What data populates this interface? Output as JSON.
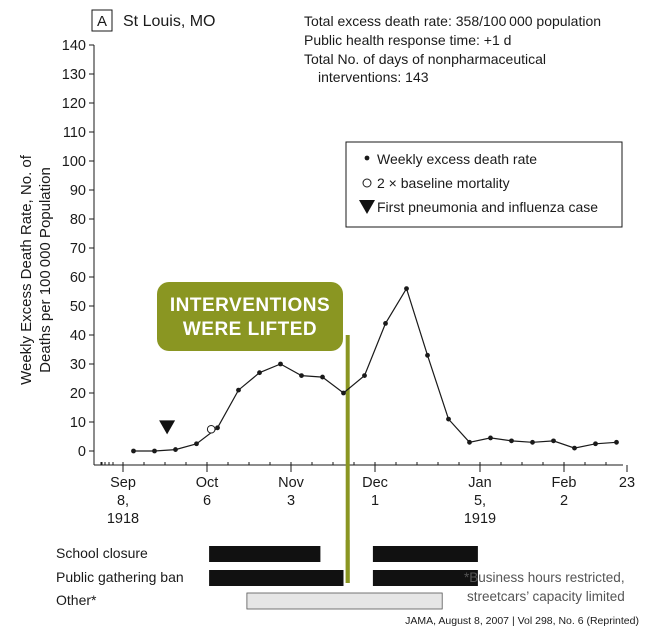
{
  "panel": {
    "label": "A",
    "city": "St Louis, MO"
  },
  "stats": [
    "Total excess death rate: 358/100 000 population",
    "Public health response time: +1 d",
    "Total No. of days of nonpharmaceutical",
    "interventions: 143"
  ],
  "legend": {
    "dot_label": "Weekly excess death rate",
    "open_label": "2 × baseline mortality",
    "triangle_label": "First pneumonia and influenza case"
  },
  "callout": {
    "line1": "INTERVENTIONS",
    "line2": "WERE LIFTED",
    "color": "#8a9622",
    "week": 10.7
  },
  "chart_data": {
    "type": "line",
    "ylabel_lines": [
      "Weekly Excess Death Rate, No. of",
      "Deaths per 100 000 Population"
    ],
    "ylim": [
      0,
      140
    ],
    "yticks": [
      0,
      10,
      20,
      30,
      40,
      50,
      60,
      70,
      80,
      90,
      100,
      110,
      120,
      130,
      140
    ],
    "xlim": [
      -0.55,
      23.8
    ],
    "xticks": [
      {
        "week": 0,
        "lines": [
          "Sep",
          "8,",
          "1918"
        ]
      },
      {
        "week": 4,
        "lines": [
          "Oct",
          "6"
        ]
      },
      {
        "week": 8,
        "lines": [
          "Nov",
          "3"
        ]
      },
      {
        "week": 12,
        "lines": [
          "Dec",
          "1"
        ]
      },
      {
        "week": 17,
        "lines": [
          "Jan",
          "5,",
          "1919"
        ]
      },
      {
        "week": 21,
        "lines": [
          "Feb",
          "2"
        ]
      },
      {
        "week": 24,
        "lines": [
          "23"
        ]
      }
    ],
    "series": [
      {
        "name": "Weekly excess death rate",
        "points": [
          {
            "week": 0.5,
            "value": 0
          },
          {
            "week": 1.5,
            "value": 0
          },
          {
            "week": 2.5,
            "value": 0.5
          },
          {
            "week": 3.5,
            "value": 2.5
          },
          {
            "week": 4.5,
            "value": 8
          },
          {
            "week": 5.5,
            "value": 21
          },
          {
            "week": 6.5,
            "value": 27
          },
          {
            "week": 7.5,
            "value": 30
          },
          {
            "week": 8.5,
            "value": 26
          },
          {
            "week": 9.5,
            "value": 25.5
          },
          {
            "week": 10.5,
            "value": 20
          },
          {
            "week": 11.5,
            "value": 26
          },
          {
            "week": 12.5,
            "value": 44
          },
          {
            "week": 13.5,
            "value": 56
          },
          {
            "week": 14.5,
            "value": 33
          },
          {
            "week": 15.5,
            "value": 11
          },
          {
            "week": 16.5,
            "value": 3
          },
          {
            "week": 17.5,
            "value": 4.5
          },
          {
            "week": 18.5,
            "value": 3.5
          },
          {
            "week": 19.5,
            "value": 3
          },
          {
            "week": 20.5,
            "value": 3.5
          },
          {
            "week": 21.5,
            "value": 1
          },
          {
            "week": 22.5,
            "value": 2.5
          },
          {
            "week": 23.5,
            "value": 3
          }
        ]
      }
    ],
    "baseline_marker": {
      "week": 4.2,
      "value": 7.5
    },
    "first_case_marker": {
      "week": 2.1,
      "value": 8.5
    }
  },
  "interventions": [
    {
      "label": "School closure",
      "style": "dark",
      "spans": [
        [
          4.1,
          9.4
        ],
        [
          11.9,
          16.9
        ]
      ]
    },
    {
      "label": "Public gathering ban",
      "style": "dark",
      "spans": [
        [
          4.1,
          10.5
        ],
        [
          11.9,
          16.9
        ]
      ]
    },
    {
      "label": "Other*",
      "style": "light",
      "spans": [
        [
          5.9,
          15.2
        ]
      ]
    }
  ],
  "footnote": [
    "*Business hours restricted,",
    "streetcars’ capacity limited"
  ],
  "citation": "JAMA, August 8, 2007 | Vol 298, No. 6 (Reprinted)"
}
